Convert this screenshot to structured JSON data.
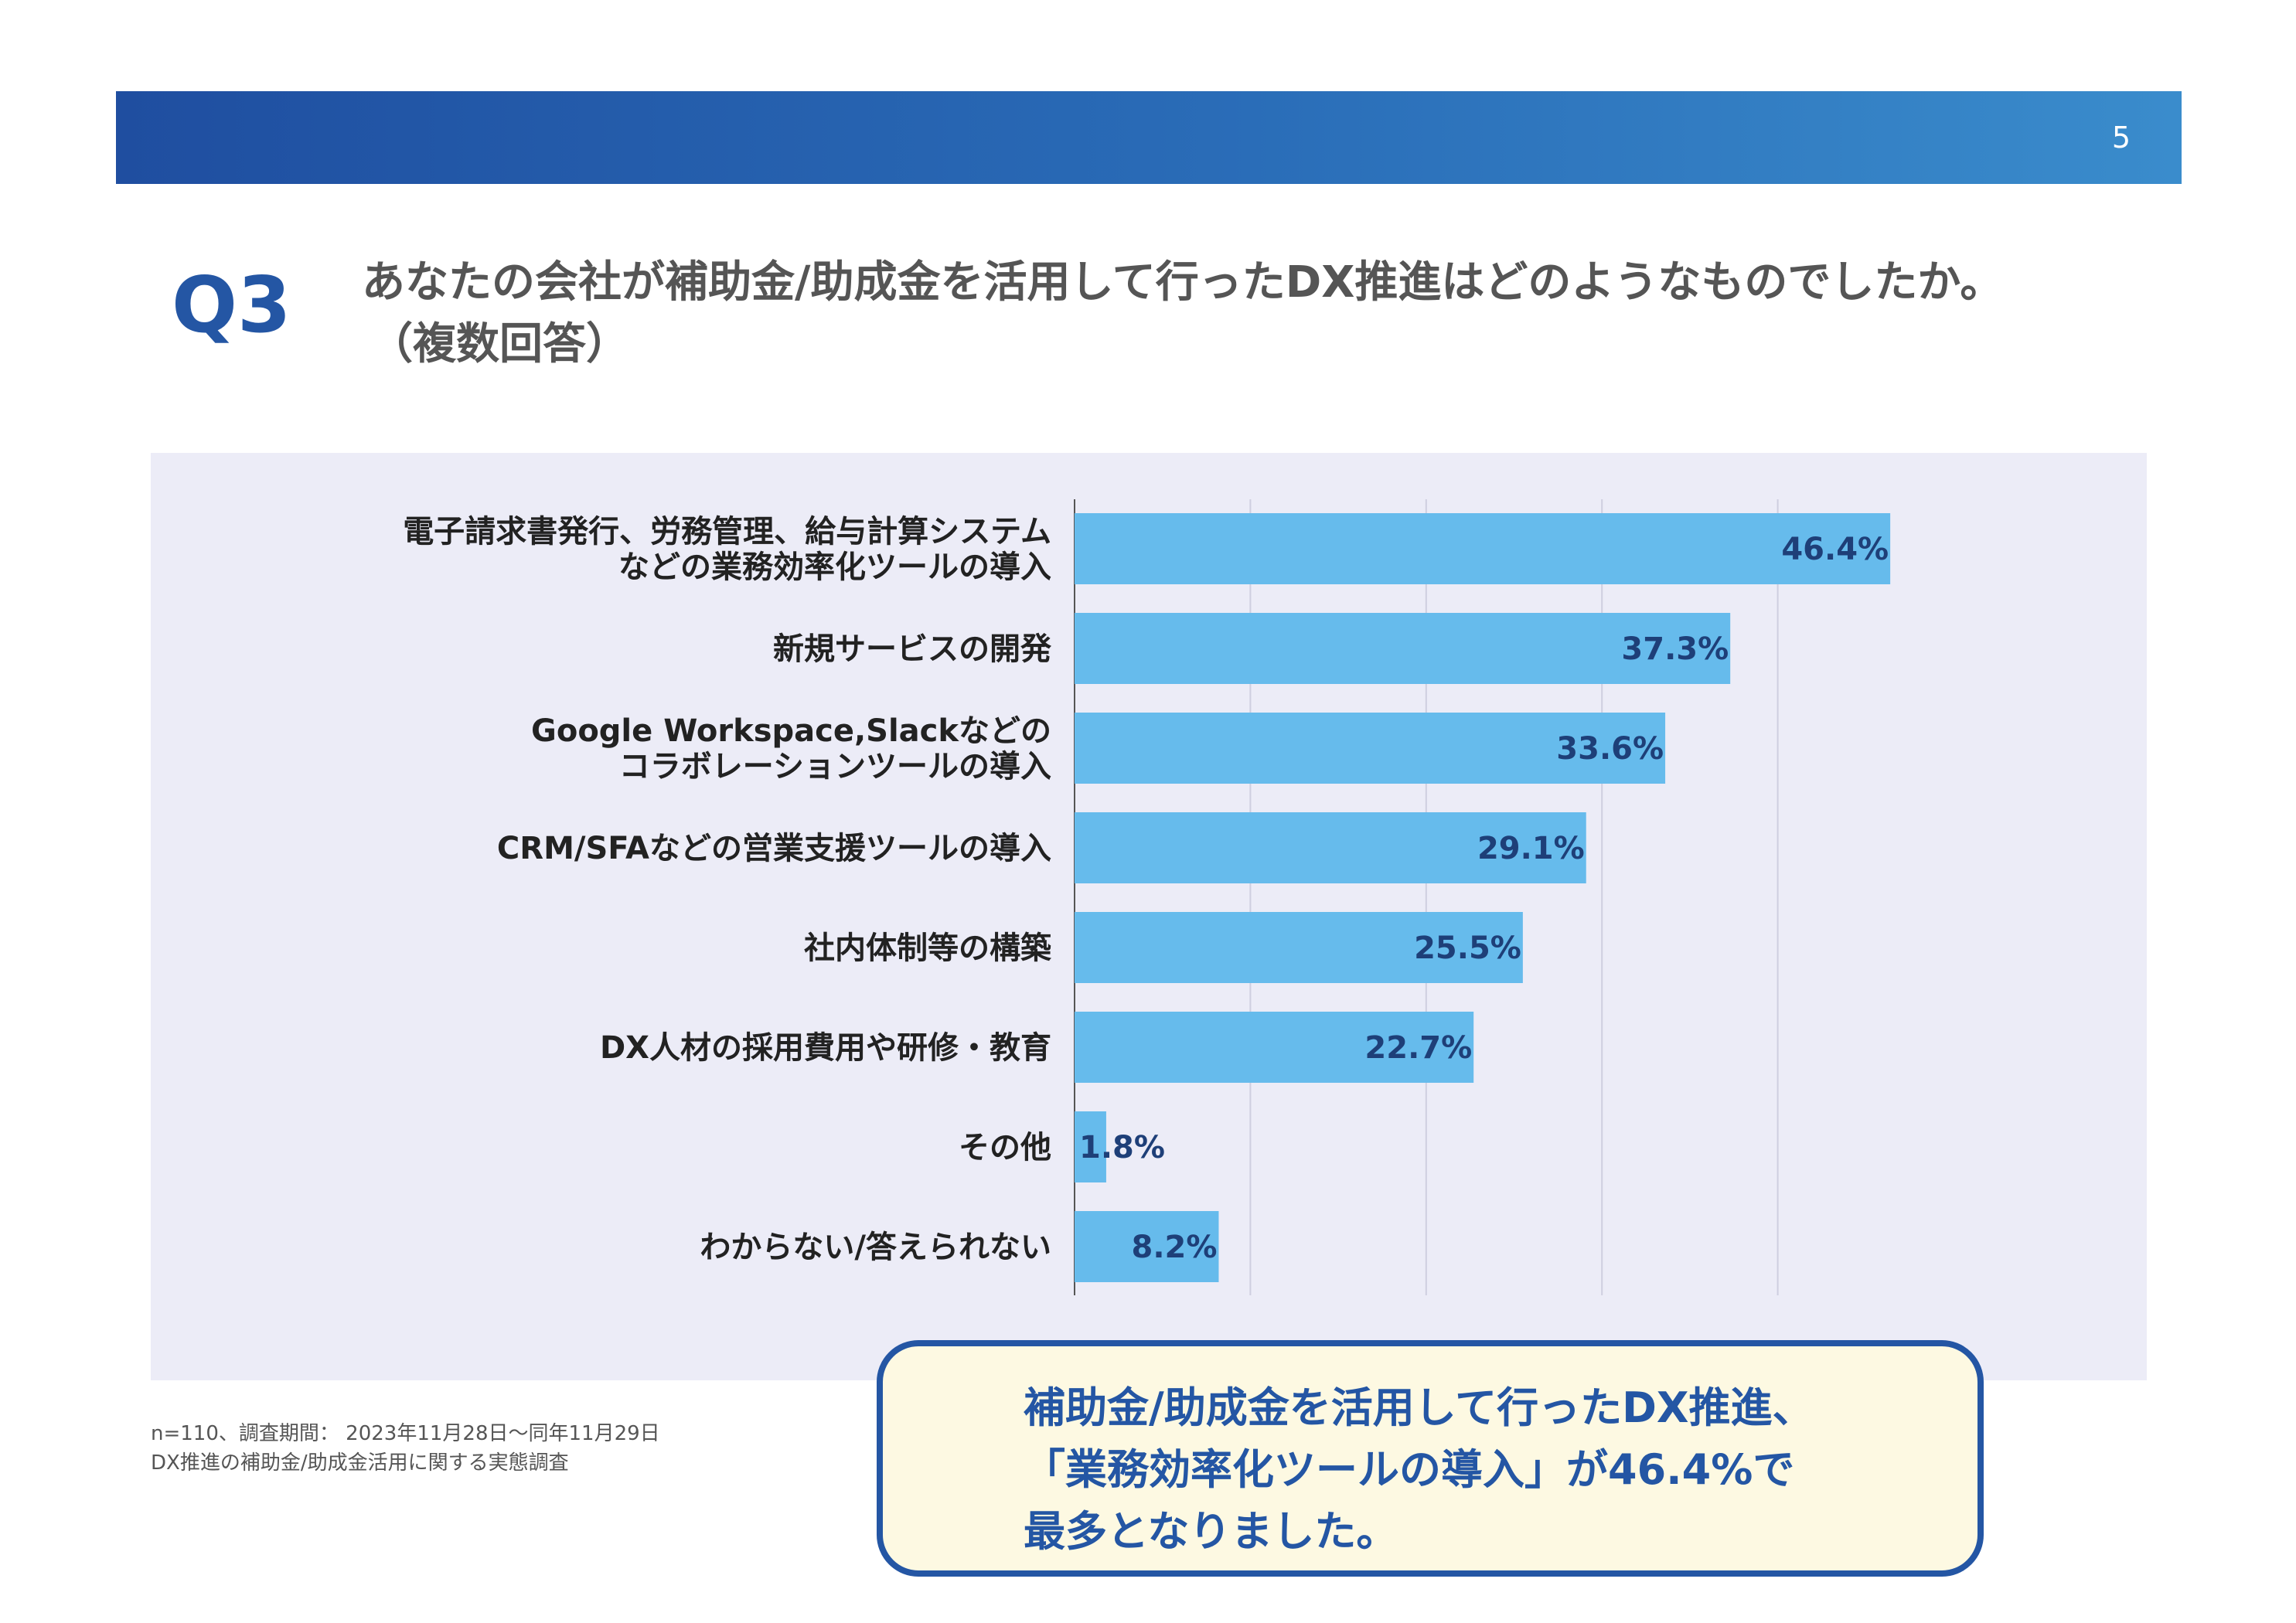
{
  "header": {
    "page_number": "5"
  },
  "question": {
    "number": "Q3",
    "text": "あなたの会社が補助金/助成金を活用して行ったDX推進はどのようなものでしたか。",
    "subtext": "（複数回答）"
  },
  "chart_data": {
    "type": "bar",
    "orientation": "horizontal",
    "categories": [
      [
        "電子請求書発行、労務管理、給与計算システム",
        "などの業務効率化ツールの導入"
      ],
      [
        "新規サービスの開発"
      ],
      [
        "Google Workspace,Slackなどの",
        "コラボレーションツールの導入"
      ],
      [
        "CRM/SFAなどの営業支援ツールの導入"
      ],
      [
        "社内体制等の構築"
      ],
      [
        "DX人材の採用費用や研修・教育"
      ],
      [
        "その他"
      ],
      [
        "わからない/答えられない"
      ]
    ],
    "values": [
      46.4,
      37.3,
      33.6,
      29.1,
      25.5,
      22.7,
      1.8,
      8.2
    ],
    "value_labels": [
      "46.4%",
      "37.3%",
      "33.6%",
      "29.1%",
      "25.5%",
      "22.7%",
      "1.8%",
      "8.2%"
    ],
    "xlim": [
      0,
      50
    ],
    "grid": true,
    "bar_color": "#66bbec",
    "panel_color": "#ececf7"
  },
  "footnote": {
    "line1": "n=110、調査期間： 2023年11月28日〜同年11月29日",
    "line2": "DX推進の補助金/助成金活用に関する実態調査"
  },
  "callout": {
    "line1": "補助金/助成金を活用して行ったDX推進、",
    "line2": "「業務効率化ツールの導入」が46.4%で",
    "line3": "最多となりました。"
  },
  "colors": {
    "header_start": "#1f4ea0",
    "header_end": "#3a8ccc",
    "accent": "#2456a4",
    "callout_bg": "#fdf9e2"
  }
}
